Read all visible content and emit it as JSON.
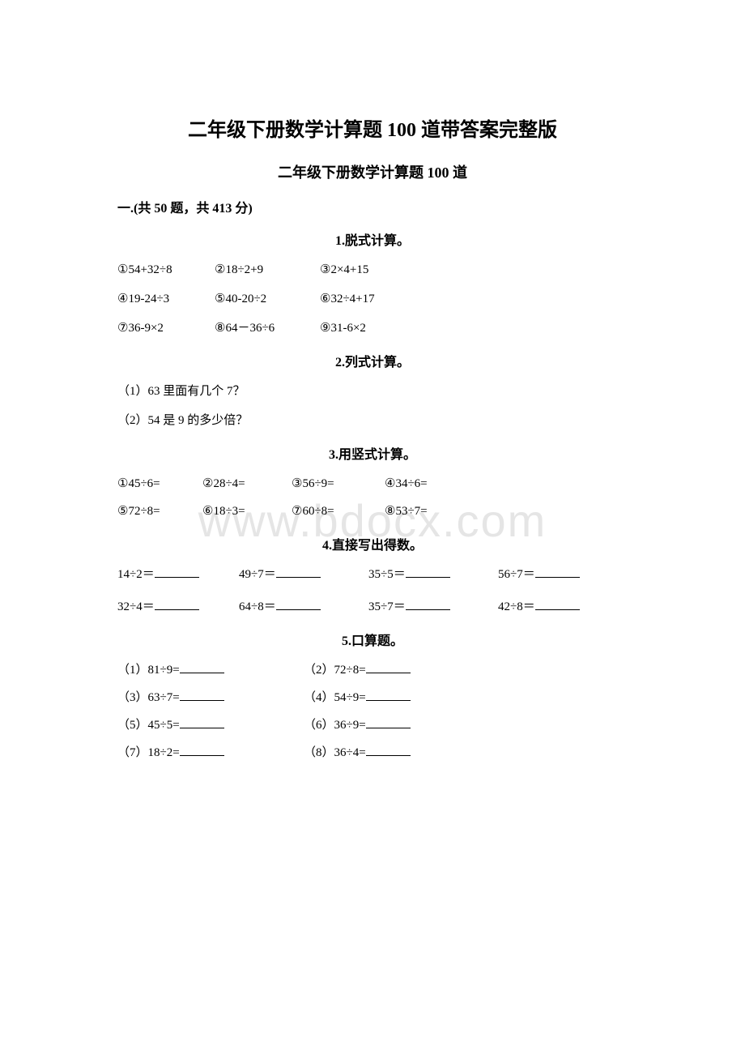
{
  "watermark": "www.bdocx.com",
  "main_title": "二年级下册数学计算题 100 道带答案完整版",
  "sub_title": "二年级下册数学计算题 100 道",
  "section_info": "一.(共 50 题，共 413 分)",
  "q1": {
    "title": "1.脱式计算。",
    "rows": [
      [
        "①54+32÷8",
        "②18÷2+9",
        "③2×4+15"
      ],
      [
        "④19-24÷3",
        "⑤40-20÷2",
        "⑥32÷4+17"
      ],
      [
        "⑦36-9×2",
        "⑧64－36÷6",
        "⑨31-6×2"
      ]
    ]
  },
  "q2": {
    "title": "2.列式计算。",
    "lines": [
      "（1）63 里面有几个 7？",
      "（2）54 是 9 的多少倍？"
    ]
  },
  "q3": {
    "title": "3.用竖式计算。",
    "rows": [
      [
        "①45÷6=",
        "②28÷4=",
        "③56÷9=",
        "④34÷6="
      ],
      [
        "⑤72÷8=",
        "⑥18÷3=",
        "⑦60÷8=",
        "⑧53÷7="
      ]
    ]
  },
  "q4": {
    "title": "4.直接写出得数。",
    "rows": [
      [
        "14÷2＝",
        "49÷7＝",
        "35÷5＝",
        "56÷7＝"
      ],
      [
        "32÷4＝",
        "64÷8＝",
        "35÷7＝",
        "42÷8＝"
      ]
    ]
  },
  "q5": {
    "title": "5.口算题。",
    "rows": [
      [
        "（1）81÷9=",
        "（2）72÷8="
      ],
      [
        "（3）63÷7=",
        "（4）54÷9="
      ],
      [
        "（5）45÷5=",
        "（6）36÷9="
      ],
      [
        "（7）18÷2=",
        "（8）36÷4="
      ]
    ]
  }
}
